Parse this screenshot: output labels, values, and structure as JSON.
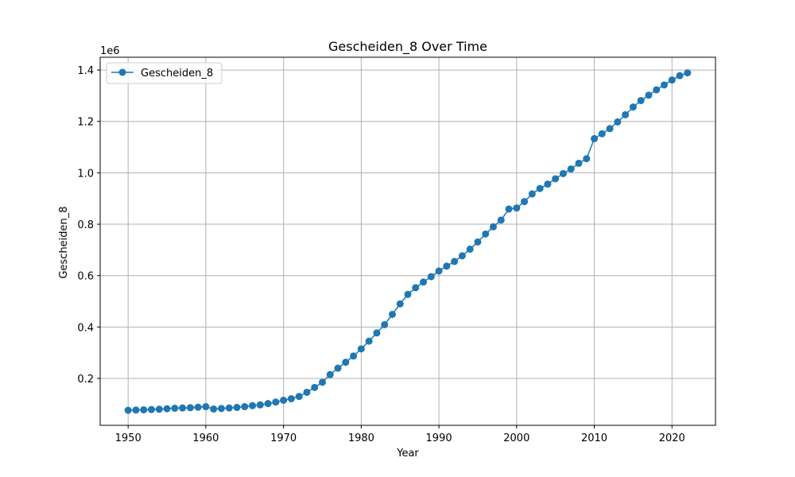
{
  "chart_data": {
    "type": "line",
    "title": "Gescheiden_8 Over Time",
    "xlabel": "Year",
    "ylabel": "Gescheiden_8",
    "y_offset_text": "1e6",
    "xlim": [
      1946.4,
      2025.6
    ],
    "ylim": [
      0.0175,
      1.4497
    ],
    "x_ticks": [
      1950,
      1960,
      1970,
      1980,
      1990,
      2000,
      2010,
      2020
    ],
    "y_ticks": [
      0.2,
      0.4,
      0.6,
      0.8,
      1.0,
      1.2,
      1.4
    ],
    "y_tick_labels": [
      "0.2",
      "0.4",
      "0.6",
      "0.8",
      "1.0",
      "1.2",
      "1.4"
    ],
    "grid": true,
    "legend_position": "top-left",
    "series": [
      {
        "name": "Gescheiden_8",
        "color": "#1f77b4",
        "marker": "circle",
        "x": [
          1950,
          1951,
          1952,
          1953,
          1954,
          1955,
          1956,
          1957,
          1958,
          1959,
          1960,
          1961,
          1962,
          1963,
          1964,
          1965,
          1966,
          1967,
          1968,
          1969,
          1970,
          1971,
          1972,
          1973,
          1974,
          1975,
          1976,
          1977,
          1978,
          1979,
          1980,
          1981,
          1982,
          1983,
          1984,
          1985,
          1986,
          1987,
          1988,
          1989,
          1990,
          1991,
          1992,
          1993,
          1994,
          1995,
          1996,
          1997,
          1998,
          1999,
          2000,
          2001,
          2002,
          2003,
          2004,
          2005,
          2006,
          2007,
          2008,
          2009,
          2010,
          2011,
          2012,
          2013,
          2014,
          2015,
          2016,
          2017,
          2018,
          2019,
          2020,
          2021,
          2022
        ],
        "y": [
          0.076,
          0.077,
          0.078,
          0.079,
          0.08,
          0.082,
          0.084,
          0.085,
          0.086,
          0.088,
          0.09,
          0.081,
          0.083,
          0.085,
          0.087,
          0.09,
          0.094,
          0.097,
          0.102,
          0.108,
          0.115,
          0.121,
          0.13,
          0.146,
          0.165,
          0.185,
          0.215,
          0.24,
          0.263,
          0.287,
          0.315,
          0.345,
          0.377,
          0.409,
          0.449,
          0.49,
          0.527,
          0.553,
          0.575,
          0.596,
          0.618,
          0.637,
          0.655,
          0.677,
          0.703,
          0.731,
          0.762,
          0.79,
          0.816,
          0.859,
          0.863,
          0.888,
          0.918,
          0.939,
          0.956,
          0.977,
          0.997,
          1.015,
          1.037,
          1.055,
          1.133,
          1.152,
          1.172,
          1.198,
          1.226,
          1.256,
          1.281,
          1.302,
          1.323,
          1.342,
          1.361,
          1.378,
          1.389
        ]
      }
    ]
  }
}
